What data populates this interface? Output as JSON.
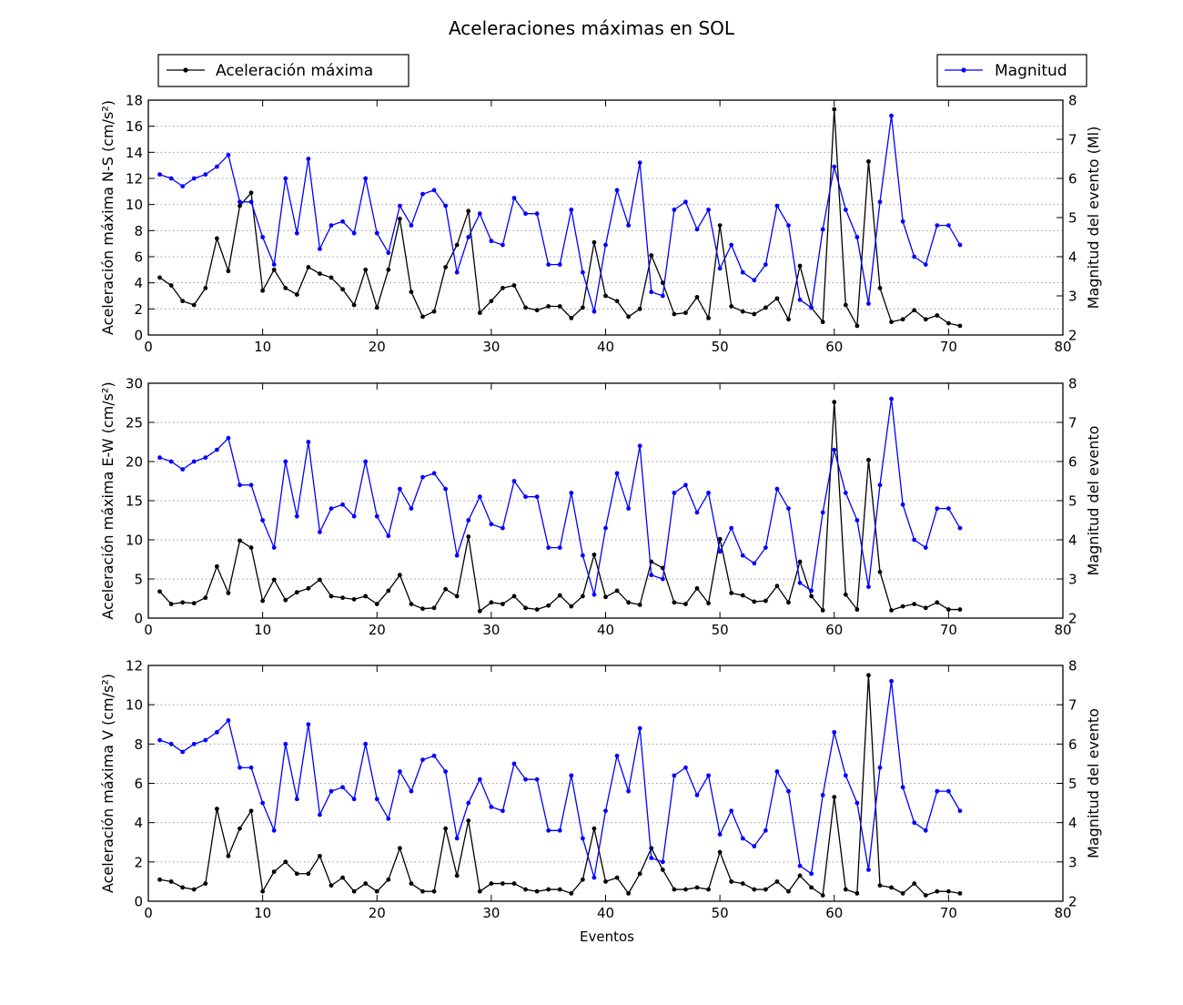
{
  "figure": {
    "title": "Aceleraciones máximas en SOL",
    "xlabel": "Eventos"
  },
  "legend": {
    "left_label": "Aceleración máxima",
    "right_label": "Magnitud"
  },
  "colors": {
    "acceleration": "#000000",
    "magnitude": "#0000ff",
    "grid": "#9a9a9a"
  },
  "chart_data": [
    {
      "type": "line",
      "ylabel": "Aceleración máxima N-S (cm/s²)",
      "y2label": "Magnitud del evento (Ml)",
      "xlim": [
        0,
        80
      ],
      "ylim": [
        0,
        18
      ],
      "y2lim": [
        2,
        8
      ],
      "xticks": [
        0,
        10,
        20,
        30,
        40,
        50,
        60,
        70,
        80
      ],
      "yticks": [
        0,
        2,
        4,
        6,
        8,
        10,
        12,
        14,
        16,
        18
      ],
      "y2ticks": [
        2,
        3,
        4,
        5,
        6,
        7,
        8
      ],
      "grid": "horizontal dotted",
      "series": [
        {
          "name": "Aceleración máxima",
          "axis": "left",
          "x": [
            1,
            2,
            3,
            4,
            5,
            6,
            7,
            8,
            9,
            10,
            11,
            12,
            13,
            14,
            15,
            16,
            17,
            18,
            19,
            20,
            21,
            22,
            23,
            24,
            25,
            26,
            27,
            28,
            29,
            30,
            31,
            32,
            33,
            34,
            35,
            36,
            37,
            38,
            39,
            40,
            41,
            42,
            43,
            44,
            45,
            46,
            47,
            48,
            49,
            50,
            51,
            52,
            53,
            54,
            55,
            56,
            57,
            58,
            59,
            60,
            61,
            62,
            63,
            64,
            65,
            66,
            67,
            68,
            69,
            70,
            71
          ],
          "values": [
            4.4,
            3.8,
            2.6,
            2.3,
            3.6,
            7.4,
            4.9,
            9.9,
            10.9,
            3.4,
            5.0,
            3.6,
            3.1,
            5.2,
            4.7,
            4.4,
            3.5,
            2.3,
            5.0,
            2.1,
            5.0,
            8.9,
            3.3,
            1.4,
            1.8,
            5.2,
            6.9,
            9.5,
            1.7,
            2.6,
            3.6,
            3.8,
            2.1,
            1.9,
            2.2,
            2.2,
            1.3,
            2.1,
            7.1,
            3.0,
            2.6,
            1.4,
            2.0,
            6.1,
            4.0,
            1.6,
            1.7,
            2.9,
            1.3,
            8.4,
            2.2,
            1.8,
            1.6,
            2.1,
            2.8,
            1.2,
            5.3,
            2.1,
            1.0,
            17.3,
            2.3,
            0.7,
            13.3,
            3.6,
            1.0,
            1.2,
            1.9,
            1.2,
            1.5,
            0.9,
            0.7
          ]
        },
        {
          "name": "Magnitud",
          "axis": "right",
          "x": [
            1,
            2,
            3,
            4,
            5,
            6,
            7,
            8,
            9,
            10,
            11,
            12,
            13,
            14,
            15,
            16,
            17,
            18,
            19,
            20,
            21,
            22,
            23,
            24,
            25,
            26,
            27,
            28,
            29,
            30,
            31,
            32,
            33,
            34,
            35,
            36,
            37,
            38,
            39,
            40,
            41,
            42,
            43,
            44,
            45,
            46,
            47,
            48,
            49,
            50,
            51,
            52,
            53,
            54,
            55,
            56,
            57,
            58,
            59,
            60,
            61,
            62,
            63,
            64,
            65,
            66,
            67,
            68,
            69,
            70,
            71
          ],
          "values": [
            6.1,
            6.0,
            5.8,
            6.0,
            6.1,
            6.3,
            6.6,
            5.4,
            5.4,
            4.5,
            3.8,
            6.0,
            4.6,
            6.5,
            4.2,
            4.8,
            4.9,
            4.6,
            6.0,
            4.6,
            4.1,
            5.3,
            4.8,
            5.6,
            5.7,
            5.3,
            3.6,
            4.5,
            5.1,
            4.4,
            4.3,
            5.5,
            5.1,
            5.1,
            3.8,
            3.8,
            5.2,
            3.6,
            2.6,
            4.3,
            5.7,
            4.8,
            6.4,
            3.1,
            3.0,
            5.2,
            5.4,
            4.7,
            5.2,
            3.7,
            4.3,
            3.6,
            3.4,
            3.8,
            5.3,
            4.8,
            2.9,
            2.7,
            4.7,
            6.3,
            5.2,
            4.5,
            2.8,
            5.4,
            7.6,
            4.9,
            4.0,
            3.8,
            4.8,
            4.8,
            4.3
          ]
        }
      ]
    },
    {
      "type": "line",
      "ylabel": "Aceleración máxima E-W (cm/s²)",
      "y2label": "Magnitud del evento",
      "xlim": [
        0,
        80
      ],
      "ylim": [
        0,
        30
      ],
      "y2lim": [
        2,
        8
      ],
      "xticks": [
        0,
        10,
        20,
        30,
        40,
        50,
        60,
        70,
        80
      ],
      "yticks": [
        0,
        5,
        10,
        15,
        20,
        25,
        30
      ],
      "y2ticks": [
        2,
        3,
        4,
        5,
        6,
        7,
        8
      ],
      "grid": "horizontal dotted",
      "series": [
        {
          "name": "Aceleración máxima",
          "axis": "left",
          "x": [
            1,
            2,
            3,
            4,
            5,
            6,
            7,
            8,
            9,
            10,
            11,
            12,
            13,
            14,
            15,
            16,
            17,
            18,
            19,
            20,
            21,
            22,
            23,
            24,
            25,
            26,
            27,
            28,
            29,
            30,
            31,
            32,
            33,
            34,
            35,
            36,
            37,
            38,
            39,
            40,
            41,
            42,
            43,
            44,
            45,
            46,
            47,
            48,
            49,
            50,
            51,
            52,
            53,
            54,
            55,
            56,
            57,
            58,
            59,
            60,
            61,
            62,
            63,
            64,
            65,
            66,
            67,
            68,
            69,
            70,
            71
          ],
          "values": [
            3.4,
            1.8,
            2.0,
            1.9,
            2.6,
            6.6,
            3.2,
            9.9,
            9.0,
            2.2,
            4.9,
            2.3,
            3.3,
            3.8,
            4.9,
            2.8,
            2.6,
            2.4,
            2.8,
            1.8,
            3.5,
            5.5,
            1.8,
            1.2,
            1.3,
            3.7,
            2.8,
            10.4,
            0.9,
            2.0,
            1.8,
            2.8,
            1.3,
            1.1,
            1.6,
            2.9,
            1.5,
            2.8,
            8.1,
            2.7,
            3.5,
            2.0,
            1.7,
            7.2,
            6.4,
            2.0,
            1.8,
            3.8,
            1.9,
            10.1,
            3.2,
            2.9,
            2.1,
            2.2,
            4.1,
            2.0,
            7.2,
            2.8,
            1.0,
            27.6,
            3.0,
            1.1,
            20.2,
            5.9,
            1.0,
            1.5,
            1.8,
            1.3,
            2.0,
            1.1,
            1.1
          ]
        },
        {
          "name": "Magnitud",
          "axis": "right",
          "x": [
            1,
            2,
            3,
            4,
            5,
            6,
            7,
            8,
            9,
            10,
            11,
            12,
            13,
            14,
            15,
            16,
            17,
            18,
            19,
            20,
            21,
            22,
            23,
            24,
            25,
            26,
            27,
            28,
            29,
            30,
            31,
            32,
            33,
            34,
            35,
            36,
            37,
            38,
            39,
            40,
            41,
            42,
            43,
            44,
            45,
            46,
            47,
            48,
            49,
            50,
            51,
            52,
            53,
            54,
            55,
            56,
            57,
            58,
            59,
            60,
            61,
            62,
            63,
            64,
            65,
            66,
            67,
            68,
            69,
            70,
            71
          ],
          "values": [
            6.1,
            6.0,
            5.8,
            6.0,
            6.1,
            6.3,
            6.6,
            5.4,
            5.4,
            4.5,
            3.8,
            6.0,
            4.6,
            6.5,
            4.2,
            4.8,
            4.9,
            4.6,
            6.0,
            4.6,
            4.1,
            5.3,
            4.8,
            5.6,
            5.7,
            5.3,
            3.6,
            4.5,
            5.1,
            4.4,
            4.3,
            5.5,
            5.1,
            5.1,
            3.8,
            3.8,
            5.2,
            3.6,
            2.6,
            4.3,
            5.7,
            4.8,
            6.4,
            3.1,
            3.0,
            5.2,
            5.4,
            4.7,
            5.2,
            3.7,
            4.3,
            3.6,
            3.4,
            3.8,
            5.3,
            4.8,
            2.9,
            2.7,
            4.7,
            6.3,
            5.2,
            4.5,
            2.8,
            5.4,
            7.6,
            4.9,
            4.0,
            3.8,
            4.8,
            4.8,
            4.3
          ]
        }
      ]
    },
    {
      "type": "line",
      "ylabel": "Aceleración máxima V (cm/s²)",
      "y2label": "Magnitud del evento",
      "xlabel": "Eventos",
      "xlim": [
        0,
        80
      ],
      "ylim": [
        0,
        12
      ],
      "y2lim": [
        2,
        8
      ],
      "xticks": [
        0,
        10,
        20,
        30,
        40,
        50,
        60,
        70,
        80
      ],
      "yticks": [
        0,
        2,
        4,
        6,
        8,
        10,
        12
      ],
      "y2ticks": [
        2,
        3,
        4,
        5,
        6,
        7,
        8
      ],
      "grid": "horizontal dotted",
      "series": [
        {
          "name": "Aceleración máxima",
          "axis": "left",
          "x": [
            1,
            2,
            3,
            4,
            5,
            6,
            7,
            8,
            9,
            10,
            11,
            12,
            13,
            14,
            15,
            16,
            17,
            18,
            19,
            20,
            21,
            22,
            23,
            24,
            25,
            26,
            27,
            28,
            29,
            30,
            31,
            32,
            33,
            34,
            35,
            36,
            37,
            38,
            39,
            40,
            41,
            42,
            43,
            44,
            45,
            46,
            47,
            48,
            49,
            50,
            51,
            52,
            53,
            54,
            55,
            56,
            57,
            58,
            59,
            60,
            61,
            62,
            63,
            64,
            65,
            66,
            67,
            68,
            69,
            70,
            71
          ],
          "values": [
            1.1,
            1.0,
            0.7,
            0.6,
            0.9,
            4.7,
            2.3,
            3.7,
            4.6,
            0.5,
            1.5,
            2.0,
            1.4,
            1.4,
            2.3,
            0.8,
            1.2,
            0.5,
            0.9,
            0.5,
            1.1,
            2.7,
            0.9,
            0.5,
            0.5,
            3.7,
            1.3,
            4.1,
            0.5,
            0.9,
            0.9,
            0.9,
            0.6,
            0.5,
            0.6,
            0.6,
            0.4,
            1.1,
            3.7,
            1.0,
            1.2,
            0.4,
            1.4,
            2.7,
            1.6,
            0.6,
            0.6,
            0.7,
            0.6,
            2.5,
            1.0,
            0.9,
            0.6,
            0.6,
            1.0,
            0.5,
            1.3,
            0.7,
            0.3,
            5.3,
            0.6,
            0.4,
            11.5,
            0.8,
            0.7,
            0.4,
            0.9,
            0.3,
            0.5,
            0.5,
            0.4
          ]
        },
        {
          "name": "Magnitud",
          "axis": "right",
          "x": [
            1,
            2,
            3,
            4,
            5,
            6,
            7,
            8,
            9,
            10,
            11,
            12,
            13,
            14,
            15,
            16,
            17,
            18,
            19,
            20,
            21,
            22,
            23,
            24,
            25,
            26,
            27,
            28,
            29,
            30,
            31,
            32,
            33,
            34,
            35,
            36,
            37,
            38,
            39,
            40,
            41,
            42,
            43,
            44,
            45,
            46,
            47,
            48,
            49,
            50,
            51,
            52,
            53,
            54,
            55,
            56,
            57,
            58,
            59,
            60,
            61,
            62,
            63,
            64,
            65,
            66,
            67,
            68,
            69,
            70,
            71
          ],
          "values": [
            6.1,
            6.0,
            5.8,
            6.0,
            6.1,
            6.3,
            6.6,
            5.4,
            5.4,
            4.5,
            3.8,
            6.0,
            4.6,
            6.5,
            4.2,
            4.8,
            4.9,
            4.6,
            6.0,
            4.6,
            4.1,
            5.3,
            4.8,
            5.6,
            5.7,
            5.3,
            3.6,
            4.5,
            5.1,
            4.4,
            4.3,
            5.5,
            5.1,
            5.1,
            3.8,
            3.8,
            5.2,
            3.6,
            2.6,
            4.3,
            5.7,
            4.8,
            6.4,
            3.1,
            3.0,
            5.2,
            5.4,
            4.7,
            5.2,
            3.7,
            4.3,
            3.6,
            3.4,
            3.8,
            5.3,
            4.8,
            2.9,
            2.7,
            4.7,
            6.3,
            5.2,
            4.5,
            2.8,
            5.4,
            7.6,
            4.9,
            4.0,
            3.8,
            4.8,
            4.8,
            4.3
          ]
        }
      ]
    }
  ]
}
